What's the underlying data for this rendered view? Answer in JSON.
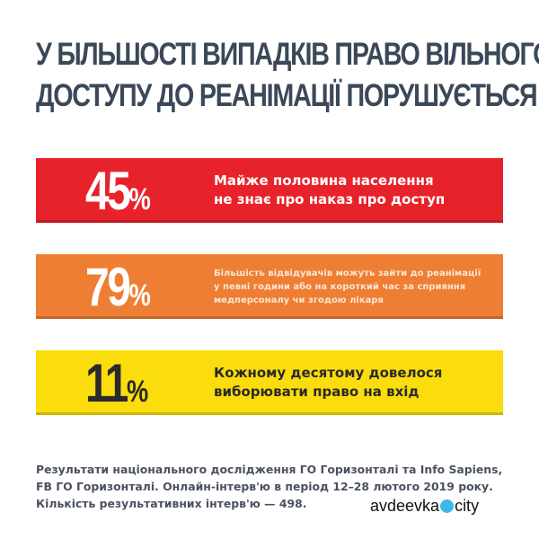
{
  "title": {
    "line1": "У БІЛЬШОСТІ ВИПАДКІВ ПРАВО ВІЛЬНОГО",
    "line2": "ДОСТУПУ ДО РЕАНІМАЦІЇ ПОРУШУЄТЬСЯ"
  },
  "stats": [
    {
      "value": "45",
      "sign": "%",
      "text_lines": [
        "Майже половина населення",
        "не знає про наказ про доступ"
      ],
      "color": "#e8222a"
    },
    {
      "value": "79",
      "sign": "%",
      "text_lines": [
        "Більшість відвідувачів можуть зайти до реанімації",
        "у певні години або на короткий час за сприяння",
        "медперсоналу чи згодою лікаря"
      ],
      "color": "#ee7e33"
    },
    {
      "value": "11",
      "sign": "%",
      "text_lines": [
        "Кожному десятому довелося",
        "виборювати право на вхід"
      ],
      "color": "#fbdc0c"
    }
  ],
  "footer": {
    "lines": [
      "Результати національного дослідження ГО Горизонталі та Info Sapiens,",
      "FB ГО Горизонталі. Онлайн-інтерв'ю в період 12–28 лютого 2019 року.",
      "Кількість результативних інтерв'ю — 498."
    ]
  },
  "watermark": {
    "left": "avdeevka",
    "right": "city"
  }
}
